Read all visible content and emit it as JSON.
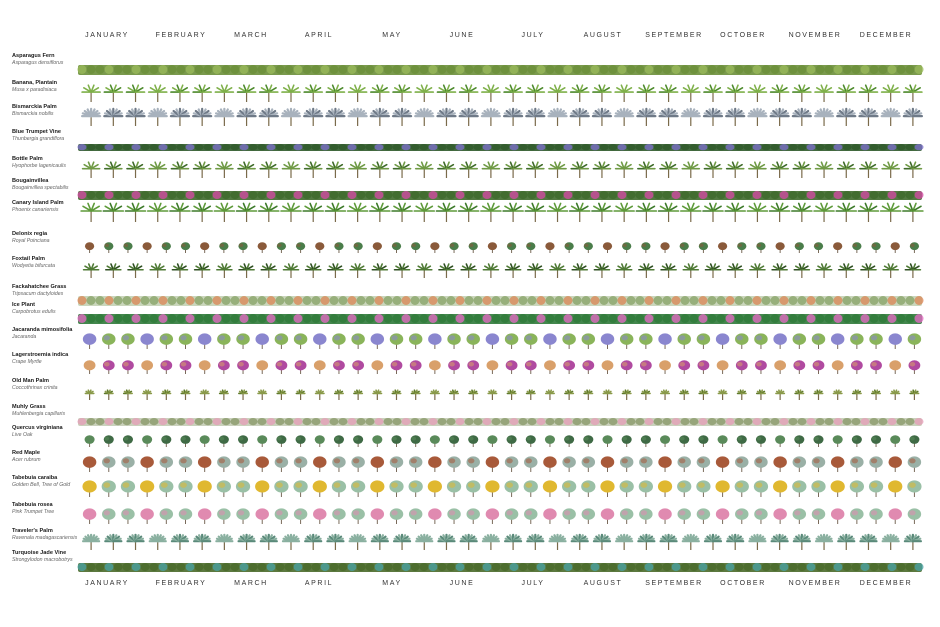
{
  "months": [
    "JANUARY",
    "FEBRUARY",
    "MARCH",
    "APRIL",
    "MAY",
    "JUNE",
    "JULY",
    "AUGUST",
    "SEPTEMBER",
    "OCTOBER",
    "NOVEMBER",
    "DECEMBER"
  ],
  "plants": [
    {
      "common": "Asparagus Fern",
      "scientific": "Asparagus densiflorus",
      "style": "hedge",
      "base": "#6c8f3a",
      "accent": "#98b85a"
    },
    {
      "common": "Banana, Plantain",
      "scientific": "Musa x paradisiaca",
      "style": "banana",
      "base": "#4d8a2c",
      "accent": "#7fb04a"
    },
    {
      "common": "Bismarckia Palm",
      "scientific": "Bismarckia nobilis",
      "style": "fan",
      "base": "#6f7a88",
      "accent": "#a8b2bd"
    },
    {
      "common": "Blue Trumpet Vine",
      "scientific": "Thunbergia grandiflora",
      "style": "vine",
      "base": "#2f5a2a",
      "accent": "#7a6fc7"
    },
    {
      "common": "Bottle Palm",
      "scientific": "Hyophorbe lagenicaulis",
      "style": "palm",
      "base": "#3f6b2a",
      "accent": "#6f9a45"
    },
    {
      "common": "Bougainvillea",
      "scientific": "Bougainvillea spectabilis",
      "style": "vine",
      "base": "#3f6a2c",
      "accent": "#d04aa0"
    },
    {
      "common": "Canary Island Palm",
      "scientific": "Phoenix canariensis",
      "style": "palm",
      "base": "#3d7a2a",
      "accent": "#5e9a3a"
    },
    {
      "common": "Delonix regia",
      "scientific": "Royal Poinciana",
      "style": "spread",
      "base": "#4a7d4a",
      "accent": "#8a5a3a"
    },
    {
      "common": "Foxtail Palm",
      "scientific": "Wodyetia bifurcata",
      "style": "palm",
      "base": "#2f4f22",
      "accent": "#4f7a35"
    },
    {
      "common": "Fackahatchee Grass",
      "scientific": "Tripsacum dactyloides",
      "style": "grass",
      "base": "#8aa56a",
      "accent": "#d98a5a"
    },
    {
      "common": "Ice Plant",
      "scientific": "Carpobrotus edulis",
      "style": "ground",
      "base": "#2f7a3a",
      "accent": "#e06ac0"
    },
    {
      "common": "Jacaranda mimosifolia",
      "scientific": "Jacaranda",
      "style": "tree",
      "base": "#8ab45a",
      "accent": "#8a86cf"
    },
    {
      "common": "Lagerstroemia indica",
      "scientific": "Crape Myrtle",
      "style": "tree",
      "base": "#b04aa0",
      "accent": "#d9a06a"
    },
    {
      "common": "Old Man Palm",
      "scientific": "Coccothrinax crinita",
      "style": "small",
      "base": "#5f7a2a",
      "accent": "#8a9a4a"
    },
    {
      "common": "Muhly Grass",
      "scientific": "Muhlenbergia capillaris",
      "style": "grass",
      "base": "#8a9a6a",
      "accent": "#e4a0b8"
    },
    {
      "common": "Quercus virginiana",
      "scientific": "Live Oak",
      "style": "tree",
      "base": "#3f6a45",
      "accent": "#5a8a5a"
    },
    {
      "common": "Red Maple",
      "scientific": "Acer rubrum",
      "style": "tree",
      "base": "#9ab0a6",
      "accent": "#a85a3a"
    },
    {
      "common": "Tabebuia caraiba",
      "scientific": "Golden Bell, Tree of Gold",
      "style": "tree",
      "base": "#9ac0a6",
      "accent": "#e0b830"
    },
    {
      "common": "Tabebuia rosea",
      "scientific": "Pink Trumpet Tree",
      "style": "tree",
      "base": "#9ac0a6",
      "accent": "#e08ab0"
    },
    {
      "common": "Traveler's Palm",
      "scientific": "Ravenala madagascariensis",
      "style": "fan",
      "base": "#5a8a7a",
      "accent": "#8ab0a0"
    },
    {
      "common": "Turquoise Jade Vine",
      "scientific": "Strongylodon macrobotrys",
      "style": "vine",
      "base": "#4a6a2a",
      "accent": "#4aa0a0"
    }
  ]
}
